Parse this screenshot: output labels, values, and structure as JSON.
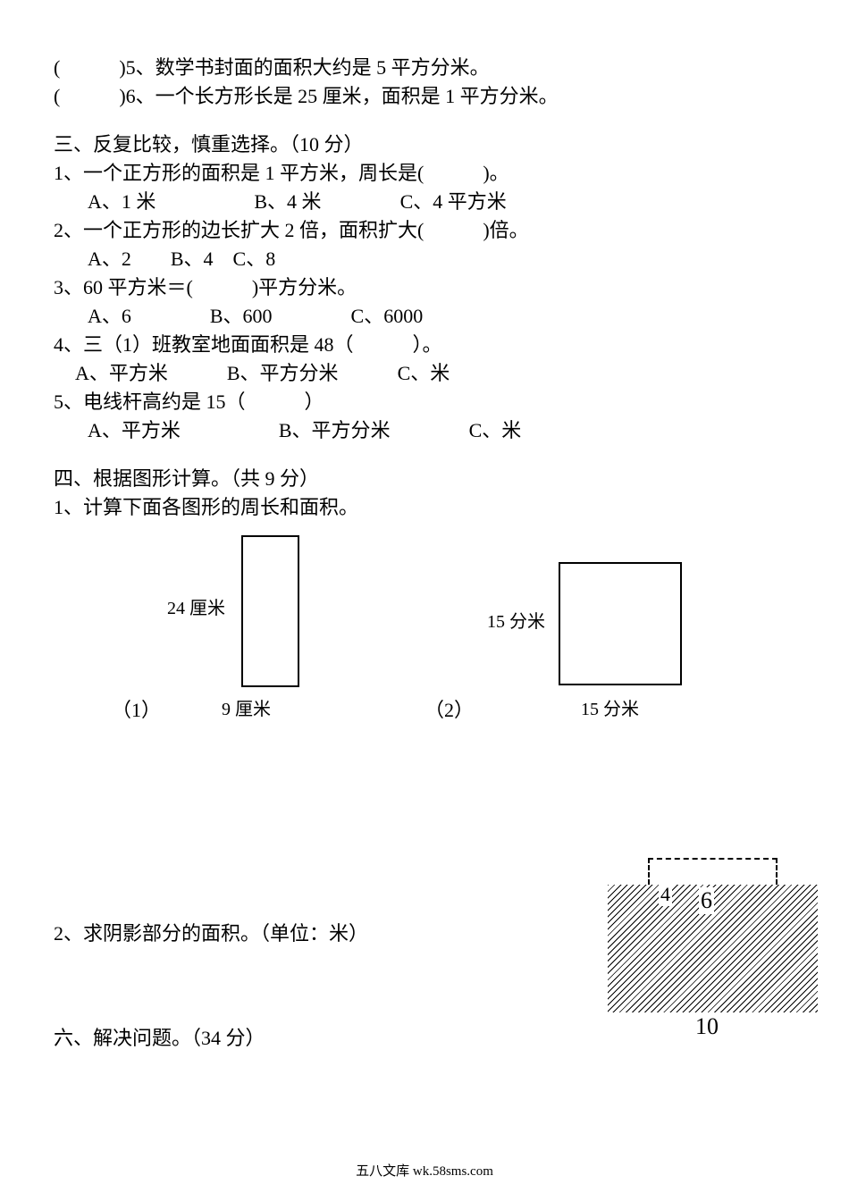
{
  "tf": {
    "q5": "(　　　)5、数学书封面的面积大约是 5 平方分米。",
    "q6": "(　　　)6、一个长方形长是 25 厘米，面积是 1 平方分米。"
  },
  "section3": {
    "title": "三、反复比较，慎重选择。（10 分）",
    "q1": "1、一个正方形的面积是 1 平方米，周长是(　　　)。",
    "q1opts": "A、1 米　　　　　B、4 米　　　　C、4 平方米",
    "q2": "2、一个正方形的边长扩大 2 倍，面积扩大(　　　)倍。",
    "q2opts": "A、2　　B、4　C、8",
    "q3": "3、60 平方米＝(　　　)平方分米。",
    "q3opts": "A、6　　　　B、600　　　　C、6000",
    "q4": "4、三（1）班教室地面面积是 48（　　　）。",
    "q4opts": "A、平方米　　　B、平方分米　　　C、米",
    "q5": "5、电线杆高约是 15（　　　）",
    "q5opts": "A、平方米　　　　　B、平方分米　　　　C、米"
  },
  "section4": {
    "title": "四、根据图形计算。（共 9 分）",
    "sub1": " 1、计算下面各图形的周长和面积。",
    "fig1": {
      "num": "（1）",
      "height": "24 厘米",
      "width": "9 厘米"
    },
    "fig2": {
      "num": "（2）",
      "height": "15 分米",
      "width": "15 分米"
    },
    "sub2": "2、求阴影部分的面积。（单位：米）",
    "shaded": {
      "inner_h": "4",
      "inner_w": "6",
      "outer_w": "10"
    }
  },
  "section6": {
    "title": "六、解决问题。（34 分）"
  },
  "footer": "五八文库 wk.58sms.com",
  "colors": {
    "text": "#000000",
    "bg": "#ffffff"
  }
}
